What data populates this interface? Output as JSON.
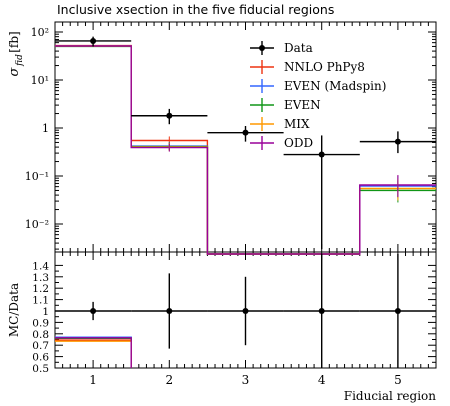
{
  "title": "Inclusive xsection in the five fiducial regions",
  "chart_data": [
    {
      "type": "line",
      "panel": "main",
      "title": "Inclusive xsection in the five fiducial regions",
      "ylabel": "σ_fid [fb]",
      "yscale": "log",
      "ylim": [
        0.0025,
        120
      ],
      "xlim": [
        0.5,
        5.5
      ],
      "ytick_labels": [
        "10²",
        "10¹",
        "1",
        "10⁻¹",
        "10⁻²"
      ],
      "ytick_values": [
        100,
        10,
        1,
        0.1,
        0.01
      ],
      "legend_position": "top-right",
      "data": {
        "name": "Data",
        "color": "#000000",
        "x": [
          1,
          2,
          3,
          4,
          5
        ],
        "y": [
          65,
          1.8,
          0.8,
          0.28,
          0.52
        ],
        "y_low": [
          50,
          1.2,
          0.52,
          0.003,
          0.3
        ],
        "y_high": [
          80,
          2.5,
          1.1,
          0.7,
          0.85
        ]
      },
      "series": [
        {
          "name": "NNLO PhPy8",
          "color": "#ee3311",
          "values": [
            52,
            0.55,
            0.0001,
            0.0001,
            0.063
          ]
        },
        {
          "name": "EVEN (Madspin)",
          "color": "#3366ff",
          "values": [
            51,
            0.42,
            0.0001,
            0.0001,
            0.062
          ]
        },
        {
          "name": "EVEN",
          "color": "#109618",
          "values": [
            50,
            0.41,
            0.0001,
            0.0001,
            0.05
          ]
        },
        {
          "name": "MIX",
          "color": "#ff9900",
          "values": [
            51,
            0.4,
            0.0001,
            0.0001,
            0.055
          ]
        },
        {
          "name": "ODD",
          "color": "#990099",
          "values": [
            51,
            0.39,
            0.0001,
            0.0001,
            0.065
          ]
        }
      ],
      "categories": [
        1,
        2,
        3,
        4,
        5
      ]
    },
    {
      "type": "line",
      "panel": "ratio",
      "ylabel": "MC/Data",
      "xlabel": "Fiducial region",
      "ylim": [
        0.5,
        1.45
      ],
      "xlim": [
        0.5,
        5.5
      ],
      "ytick_labels": [
        "1.4",
        "1.3",
        "1.2",
        "1.1",
        "1",
        "0.9",
        "0.8",
        "0.7",
        "0.6",
        "0.5"
      ],
      "ytick_values": [
        1.4,
        1.3,
        1.2,
        1.1,
        1.0,
        0.9,
        0.8,
        0.7,
        0.6,
        0.5
      ],
      "xtick_labels": [
        "1",
        "2",
        "3",
        "4",
        "5"
      ],
      "data": {
        "name": "Data",
        "x": [
          1,
          2,
          3,
          4,
          5
        ],
        "y": [
          1,
          1,
          1,
          1,
          1
        ],
        "y_low": [
          0.92,
          0.67,
          0.7,
          0.45,
          0.45
        ],
        "y_high": [
          1.08,
          1.33,
          1.3,
          1.5,
          1.5
        ]
      },
      "series": [
        {
          "name": "NNLO PhPy8",
          "color": "#ee3311",
          "values": [
            0.745
          ]
        },
        {
          "name": "EVEN (Madspin)",
          "color": "#3366ff",
          "values": [
            0.77
          ]
        },
        {
          "name": "EVEN",
          "color": "#109618",
          "values": [
            0.76
          ]
        },
        {
          "name": "MIX",
          "color": "#ff9900",
          "values": [
            0.735
          ]
        },
        {
          "name": "ODD",
          "color": "#990099",
          "values": [
            0.765
          ]
        }
      ]
    }
  ]
}
